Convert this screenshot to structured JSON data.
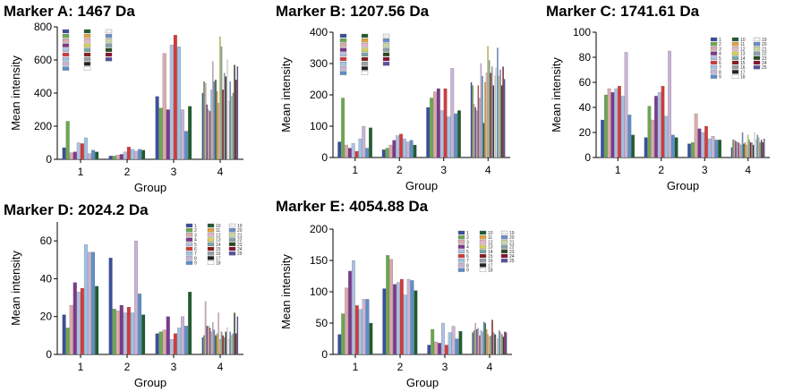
{
  "series_names": [
    "1",
    "2",
    "3",
    "4",
    "5",
    "6",
    "7",
    "8",
    "9",
    "10",
    "11",
    "12",
    "13",
    "14",
    "15",
    "16",
    "17",
    "18",
    "19",
    "20",
    "21",
    "22",
    "23",
    "24",
    "25"
  ],
  "series_colors": [
    "#3a4f9c",
    "#6aa84f",
    "#dba9a9",
    "#7a3a8c",
    "#b0c0e0",
    "#d23b3b",
    "#9ec3e6",
    "#c9b3d6",
    "#5b8fc7",
    "#1f5c2e",
    "#e6a23c",
    "#e8b4c8",
    "#d9d05a",
    "#7aa6a6",
    "#8b1a1a",
    "#9aa0a8",
    "#222222",
    "#ffffff",
    "#f2f2f2",
    "#6a8cc8",
    "#c8d8a0",
    "#88a0a8",
    "#2b4a1f",
    "#8a1030",
    "#5a4fa0"
  ],
  "chart_data": [
    {
      "type": "bar",
      "title": "Marker A: 1467 Da",
      "xlabel": "Group",
      "ylabel": "Mean intensity",
      "categories": [
        "1",
        "2",
        "3",
        "4"
      ],
      "ylim": [
        0,
        800
      ],
      "yticks": [
        0,
        200,
        400,
        600,
        800
      ],
      "legend": "top-left",
      "legend_series": 25,
      "legend_labels_legible": false,
      "values": [
        [
          70,
          230,
          40,
          45,
          100,
          95,
          130,
          35,
          55,
          45,
          0,
          0,
          0,
          0,
          0,
          0,
          0,
          0,
          0,
          0,
          0,
          0,
          0,
          0,
          0
        ],
        [
          20,
          20,
          25,
          30,
          45,
          75,
          60,
          50,
          60,
          55,
          0,
          0,
          0,
          0,
          0,
          0,
          0,
          0,
          0,
          0,
          0,
          0,
          0,
          0,
          0
        ],
        [
          380,
          310,
          640,
          300,
          690,
          750,
          680,
          300,
          170,
          320,
          0,
          0,
          0,
          0,
          0,
          0,
          0,
          0,
          0,
          0,
          0,
          0,
          0,
          0,
          0
        ],
        [
          400,
          470,
          460,
          330,
          300,
          290,
          420,
          590,
          470,
          480,
          410,
          340,
          740,
          680,
          420,
          520,
          500,
          600,
          350,
          470,
          380,
          400,
          570,
          480,
          560
        ]
      ]
    },
    {
      "type": "bar",
      "title": "Marker B: 1207.56 Da",
      "xlabel": "Group",
      "ylabel": "Mean intensity",
      "categories": [
        "1",
        "2",
        "3",
        "4"
      ],
      "ylim": [
        0,
        400
      ],
      "yticks": [
        0,
        100,
        200,
        300,
        400
      ],
      "legend": "top-left",
      "legend_series": 25,
      "legend_labels_legible": false,
      "values": [
        [
          50,
          190,
          40,
          30,
          45,
          20,
          60,
          100,
          30,
          95,
          0,
          0,
          0,
          0,
          0,
          0,
          0,
          0,
          0,
          0,
          0,
          0,
          0,
          0,
          0
        ],
        [
          25,
          30,
          40,
          55,
          70,
          75,
          60,
          50,
          55,
          40,
          0,
          0,
          0,
          0,
          0,
          0,
          0,
          0,
          0,
          0,
          0,
          0,
          0,
          0,
          0
        ],
        [
          160,
          190,
          210,
          220,
          150,
          220,
          130,
          285,
          140,
          150,
          0,
          0,
          0,
          0,
          0,
          0,
          0,
          0,
          0,
          0,
          0,
          0,
          0,
          0,
          0
        ],
        [
          240,
          230,
          170,
          160,
          150,
          230,
          190,
          300,
          260,
          110,
          240,
          270,
          355,
          310,
          270,
          290,
          230,
          260,
          285,
          350,
          260,
          280,
          230,
          290,
          250
        ]
      ]
    },
    {
      "type": "bar",
      "title": "Marker C: 1741.61 Da",
      "xlabel": "Group",
      "ylabel": "Mean intensity",
      "categories": [
        "1",
        "2",
        "3",
        "4"
      ],
      "ylim": [
        0,
        100
      ],
      "yticks": [
        0,
        20,
        40,
        60,
        80,
        100
      ],
      "legend": "top-right",
      "legend_series": 25,
      "legend_labels_legible": true,
      "values": [
        [
          30,
          50,
          55,
          52,
          55,
          57,
          49,
          84,
          34,
          18,
          0,
          0,
          0,
          0,
          0,
          0,
          0,
          0,
          0,
          0,
          0,
          0,
          0,
          0,
          0
        ],
        [
          16,
          41,
          30,
          49,
          52,
          57,
          33,
          85,
          18,
          16,
          0,
          0,
          0,
          0,
          0,
          0,
          0,
          0,
          0,
          0,
          0,
          0,
          0,
          0,
          0
        ],
        [
          11,
          12,
          35,
          23,
          20,
          25,
          15,
          17,
          14,
          14,
          0,
          0,
          0,
          0,
          0,
          0,
          0,
          0,
          0,
          0,
          0,
          0,
          0,
          0,
          0
        ],
        [
          8,
          14,
          14,
          13,
          12,
          12,
          11,
          10,
          20,
          11,
          12,
          10,
          18,
          14,
          12,
          12,
          10,
          20,
          14,
          18,
          16,
          12,
          14,
          12,
          15
        ]
      ]
    },
    {
      "type": "bar",
      "title": "Marker D: 2024.2 Da",
      "xlabel": "Group",
      "ylabel": "Mean intensity",
      "categories": [
        "1",
        "2",
        "3",
        "4"
      ],
      "ylim": [
        0,
        70
      ],
      "yticks": [
        0,
        20,
        40,
        60
      ],
      "legend": "top-right",
      "legend_series": 25,
      "legend_labels_legible": true,
      "values": [
        [
          21,
          14,
          26,
          38,
          33,
          35,
          58,
          54,
          54,
          36,
          0,
          0,
          0,
          0,
          0,
          0,
          0,
          0,
          0,
          0,
          0,
          0,
          0,
          0,
          0
        ],
        [
          51,
          24,
          23,
          26,
          22,
          25,
          22,
          60,
          32,
          21,
          0,
          0,
          0,
          0,
          0,
          0,
          0,
          0,
          0,
          0,
          0,
          0,
          0,
          0,
          0
        ],
        [
          11,
          12,
          13,
          20,
          8,
          11,
          14,
          20,
          15,
          33,
          0,
          0,
          0,
          0,
          0,
          0,
          0,
          0,
          0,
          0,
          0,
          0,
          0,
          0,
          0
        ],
        [
          9,
          10,
          28,
          15,
          15,
          14,
          12,
          17,
          13,
          10,
          11,
          22,
          8,
          12,
          10,
          9,
          12,
          14,
          8,
          12,
          10,
          11,
          22,
          11,
          20
        ]
      ]
    },
    {
      "type": "bar",
      "title": "Marker E: 4054.88 Da",
      "xlabel": "Group",
      "ylabel": "Mean intensity",
      "categories": [
        "1",
        "2",
        "3",
        "4"
      ],
      "ylim": [
        0,
        200
      ],
      "yticks": [
        0,
        50,
        100,
        150,
        200
      ],
      "legend": "top-center",
      "legend_series": 25,
      "legend_labels_legible": true,
      "values": [
        [
          32,
          65,
          106,
          133,
          150,
          78,
          72,
          88,
          88,
          50,
          0,
          0,
          0,
          0,
          0,
          0,
          0,
          0,
          0,
          0,
          0,
          0,
          0,
          0,
          0
        ],
        [
          105,
          158,
          152,
          112,
          115,
          120,
          95,
          120,
          118,
          102,
          0,
          0,
          0,
          0,
          0,
          0,
          0,
          0,
          0,
          0,
          0,
          0,
          0,
          0,
          0
        ],
        [
          15,
          40,
          20,
          18,
          50,
          15,
          35,
          45,
          25,
          37,
          0,
          0,
          0,
          0,
          0,
          0,
          0,
          0,
          0,
          0,
          0,
          0,
          0,
          0,
          0
        ],
        [
          35,
          38,
          50,
          40,
          42,
          30,
          38,
          36,
          52,
          50,
          40,
          32,
          28,
          30,
          55,
          35,
          32,
          30,
          25,
          38,
          35,
          32,
          28,
          36,
          35
        ]
      ]
    }
  ]
}
